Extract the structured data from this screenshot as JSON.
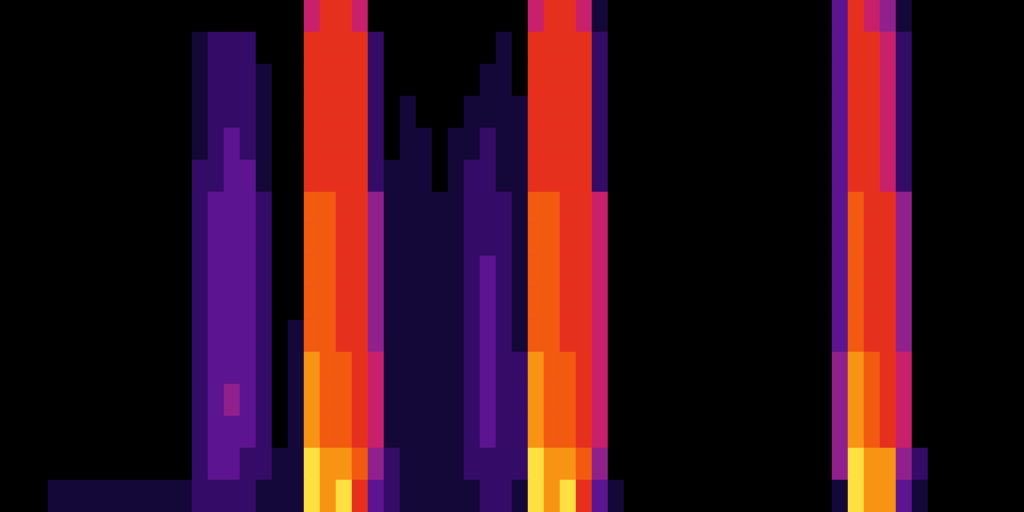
{
  "chart_data": {
    "type": "heatmap",
    "tick_labels": false,
    "zlim": [
      0,
      9
    ],
    "cells": [
      [
        0,
        0,
        0,
        0,
        0,
        0,
        0,
        0,
        0,
        0,
        0,
        0,
        0,
        0,
        0,
        0,
        0,
        0,
        0,
        5,
        6,
        6,
        5,
        0,
        0,
        0,
        0,
        0,
        0,
        0,
        0,
        0,
        0,
        5,
        6,
        6,
        5,
        1,
        0,
        0,
        0,
        0,
        0,
        0,
        0,
        0,
        0,
        0,
        0,
        0,
        0,
        0,
        3,
        6,
        5,
        4,
        1,
        0,
        0,
        0,
        0,
        0,
        0,
        0
      ],
      [
        0,
        0,
        0,
        0,
        0,
        0,
        0,
        0,
        0,
        0,
        0,
        0,
        1,
        2,
        2,
        2,
        0,
        0,
        0,
        6,
        6,
        6,
        6,
        2,
        0,
        0,
        0,
        0,
        0,
        0,
        0,
        1,
        0,
        6,
        6,
        6,
        6,
        2,
        0,
        0,
        0,
        0,
        0,
        0,
        0,
        0,
        0,
        0,
        0,
        0,
        0,
        0,
        3,
        6,
        6,
        5,
        2,
        0,
        0,
        0,
        0,
        0,
        0,
        0
      ],
      [
        0,
        0,
        0,
        0,
        0,
        0,
        0,
        0,
        0,
        0,
        0,
        0,
        1,
        2,
        2,
        2,
        1,
        0,
        0,
        6,
        6,
        6,
        6,
        2,
        0,
        0,
        0,
        0,
        0,
        0,
        1,
        1,
        0,
        6,
        6,
        6,
        6,
        2,
        0,
        0,
        0,
        0,
        0,
        0,
        0,
        0,
        0,
        0,
        0,
        0,
        0,
        0,
        3,
        6,
        6,
        5,
        2,
        0,
        0,
        0,
        0,
        0,
        0,
        0
      ],
      [
        0,
        0,
        0,
        0,
        0,
        0,
        0,
        0,
        0,
        0,
        0,
        0,
        1,
        2,
        2,
        2,
        1,
        0,
        0,
        6,
        6,
        6,
        6,
        2,
        0,
        1,
        0,
        0,
        0,
        1,
        1,
        1,
        1,
        6,
        6,
        6,
        6,
        2,
        0,
        0,
        0,
        0,
        0,
        0,
        0,
        0,
        0,
        0,
        0,
        0,
        0,
        0,
        3,
        6,
        6,
        5,
        2,
        0,
        0,
        0,
        0,
        0,
        0,
        0
      ],
      [
        0,
        0,
        0,
        0,
        0,
        0,
        0,
        0,
        0,
        0,
        0,
        0,
        1,
        2,
        3,
        2,
        1,
        0,
        0,
        6,
        6,
        6,
        6,
        2,
        0,
        1,
        1,
        0,
        1,
        1,
        2,
        1,
        1,
        6,
        6,
        6,
        6,
        2,
        0,
        0,
        0,
        0,
        0,
        0,
        0,
        0,
        0,
        0,
        0,
        0,
        0,
        0,
        3,
        6,
        6,
        5,
        2,
        0,
        0,
        0,
        0,
        0,
        0,
        0
      ],
      [
        0,
        0,
        0,
        0,
        0,
        0,
        0,
        0,
        0,
        0,
        0,
        0,
        2,
        2,
        3,
        3,
        1,
        0,
        0,
        6,
        6,
        6,
        6,
        2,
        1,
        1,
        1,
        0,
        1,
        2,
        2,
        1,
        1,
        6,
        6,
        6,
        6,
        2,
        0,
        0,
        0,
        0,
        0,
        0,
        0,
        0,
        0,
        0,
        0,
        0,
        0,
        0,
        3,
        6,
        6,
        5,
        2,
        0,
        0,
        0,
        0,
        0,
        0,
        0
      ],
      [
        0,
        0,
        0,
        0,
        0,
        0,
        0,
        0,
        0,
        0,
        0,
        0,
        2,
        3,
        3,
        3,
        2,
        0,
        0,
        7,
        7,
        6,
        6,
        4,
        1,
        1,
        1,
        1,
        1,
        2,
        2,
        2,
        1,
        7,
        7,
        6,
        6,
        5,
        0,
        0,
        0,
        0,
        0,
        0,
        0,
        0,
        0,
        0,
        0,
        0,
        0,
        0,
        3,
        7,
        6,
        6,
        4,
        0,
        0,
        0,
        0,
        0,
        0,
        0
      ],
      [
        0,
        0,
        0,
        0,
        0,
        0,
        0,
        0,
        0,
        0,
        0,
        0,
        2,
        3,
        3,
        3,
        2,
        0,
        0,
        7,
        7,
        6,
        6,
        4,
        1,
        1,
        1,
        1,
        1,
        2,
        2,
        2,
        1,
        7,
        7,
        6,
        6,
        5,
        0,
        0,
        0,
        0,
        0,
        0,
        0,
        0,
        0,
        0,
        0,
        0,
        0,
        0,
        3,
        7,
        6,
        6,
        4,
        0,
        0,
        0,
        0,
        0,
        0,
        0
      ],
      [
        0,
        0,
        0,
        0,
        0,
        0,
        0,
        0,
        0,
        0,
        0,
        0,
        2,
        3,
        3,
        3,
        2,
        0,
        0,
        7,
        7,
        6,
        6,
        4,
        1,
        1,
        1,
        1,
        1,
        2,
        3,
        2,
        1,
        7,
        7,
        6,
        6,
        5,
        0,
        0,
        0,
        0,
        0,
        0,
        0,
        0,
        0,
        0,
        0,
        0,
        0,
        0,
        3,
        7,
        6,
        6,
        4,
        0,
        0,
        0,
        0,
        0,
        0,
        0
      ],
      [
        0,
        0,
        0,
        0,
        0,
        0,
        0,
        0,
        0,
        0,
        0,
        0,
        2,
        3,
        3,
        3,
        2,
        0,
        0,
        7,
        7,
        6,
        6,
        4,
        1,
        1,
        1,
        1,
        1,
        2,
        3,
        2,
        1,
        7,
        7,
        6,
        6,
        5,
        0,
        0,
        0,
        0,
        0,
        0,
        0,
        0,
        0,
        0,
        0,
        0,
        0,
        0,
        3,
        7,
        6,
        6,
        4,
        0,
        0,
        0,
        0,
        0,
        0,
        0
      ],
      [
        0,
        0,
        0,
        0,
        0,
        0,
        0,
        0,
        0,
        0,
        0,
        0,
        2,
        3,
        3,
        3,
        2,
        0,
        1,
        7,
        7,
        6,
        6,
        4,
        1,
        1,
        1,
        1,
        1,
        2,
        3,
        2,
        1,
        7,
        7,
        6,
        6,
        5,
        0,
        0,
        0,
        0,
        0,
        0,
        0,
        0,
        0,
        0,
        0,
        0,
        0,
        0,
        3,
        7,
        6,
        6,
        4,
        0,
        0,
        0,
        0,
        0,
        0,
        0
      ],
      [
        0,
        0,
        0,
        0,
        0,
        0,
        0,
        0,
        0,
        0,
        0,
        0,
        2,
        3,
        3,
        3,
        2,
        0,
        1,
        8,
        7,
        7,
        6,
        5,
        1,
        1,
        1,
        1,
        1,
        2,
        3,
        2,
        2,
        8,
        7,
        7,
        6,
        5,
        0,
        0,
        0,
        0,
        0,
        0,
        0,
        0,
        0,
        0,
        0,
        0,
        0,
        0,
        4,
        8,
        7,
        6,
        5,
        0,
        0,
        0,
        0,
        0,
        0,
        0
      ],
      [
        0,
        0,
        0,
        0,
        0,
        0,
        0,
        0,
        0,
        0,
        0,
        0,
        2,
        3,
        4,
        3,
        2,
        0,
        1,
        8,
        7,
        7,
        6,
        5,
        1,
        1,
        1,
        1,
        1,
        2,
        3,
        2,
        2,
        8,
        7,
        7,
        6,
        5,
        0,
        0,
        0,
        0,
        0,
        0,
        0,
        0,
        0,
        0,
        0,
        0,
        0,
        0,
        4,
        8,
        7,
        6,
        5,
        0,
        0,
        0,
        0,
        0,
        0,
        0
      ],
      [
        0,
        0,
        0,
        0,
        0,
        0,
        0,
        0,
        0,
        0,
        0,
        0,
        2,
        3,
        3,
        3,
        2,
        0,
        1,
        8,
        7,
        7,
        6,
        5,
        1,
        1,
        1,
        1,
        1,
        2,
        3,
        2,
        2,
        8,
        7,
        7,
        6,
        5,
        0,
        0,
        0,
        0,
        0,
        0,
        0,
        0,
        0,
        0,
        0,
        0,
        0,
        0,
        4,
        8,
        7,
        6,
        5,
        0,
        0,
        0,
        0,
        0,
        0,
        0
      ],
      [
        0,
        0,
        0,
        0,
        0,
        0,
        0,
        0,
        0,
        0,
        0,
        0,
        2,
        3,
        3,
        2,
        2,
        1,
        1,
        9,
        8,
        8,
        7,
        4,
        2,
        1,
        1,
        1,
        1,
        2,
        2,
        2,
        2,
        9,
        8,
        8,
        7,
        4,
        0,
        0,
        0,
        0,
        0,
        0,
        0,
        0,
        0,
        0,
        0,
        0,
        0,
        0,
        4,
        9,
        8,
        8,
        4,
        2,
        0,
        0,
        0,
        0,
        0,
        0
      ],
      [
        0,
        0,
        0,
        1,
        1,
        1,
        1,
        1,
        1,
        1,
        1,
        1,
        2,
        2,
        2,
        2,
        1,
        1,
        1,
        9,
        8,
        9,
        6,
        3,
        2,
        1,
        1,
        1,
        1,
        1,
        2,
        2,
        1,
        9,
        8,
        9,
        6,
        3,
        1,
        0,
        0,
        0,
        0,
        0,
        0,
        0,
        0,
        0,
        0,
        0,
        0,
        0,
        1,
        9,
        8,
        8,
        3,
        1,
        0,
        0,
        0,
        0,
        0,
        0
      ]
    ]
  }
}
